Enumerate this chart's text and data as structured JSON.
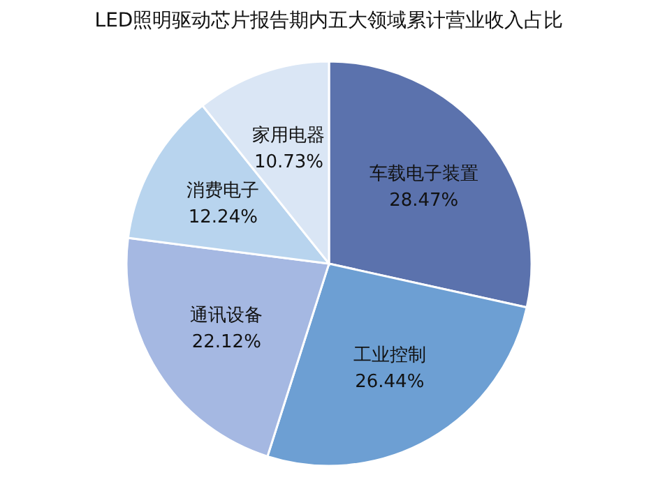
{
  "chart_data": {
    "type": "pie",
    "title": "LED照明驱动芯片报告期内五大领域累计营业收入占比",
    "categories": [
      "车载电子装置",
      "工业控制",
      "通讯设备",
      "消费电子",
      "家用电器"
    ],
    "values": [
      28.47,
      26.44,
      22.12,
      12.24,
      10.73
    ],
    "value_labels": [
      "28.47%",
      "26.44%",
      "22.12%",
      "12.24%",
      "10.73%"
    ],
    "colors": [
      "#5b72ad",
      "#6d9fd3",
      "#a5b8e2",
      "#b8d4ee",
      "#dae6f5"
    ],
    "legend": false
  }
}
